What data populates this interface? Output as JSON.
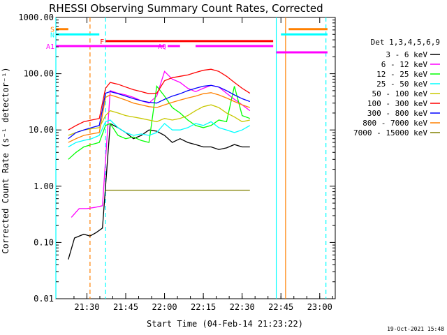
{
  "chart_data": {
    "type": "line",
    "title": "RHESSI Observing Summary Count Rates, Corrected",
    "xlabel": "Start Time (04-Feb-14 21:23:22)",
    "ylabel": "Corrected Count Rate (s⁻¹ detector⁻¹)",
    "yscale": "log",
    "xlim_minutes": [
      21.3,
      23.1
    ],
    "ylim": [
      0.01,
      1000
    ],
    "x_ticks": [
      "21:30",
      "21:45",
      "22:00",
      "22:15",
      "22:30",
      "22:45",
      "23:00"
    ],
    "y_ticks": [
      "0.01",
      "0.10",
      "1.00",
      "10.00",
      "100.00",
      "1000.00"
    ],
    "legend_title": "Det 1,3,4,5,6,9",
    "legend_position": "right",
    "x_units": "hours of day",
    "series": [
      {
        "name": "3 - 6 keV",
        "color": "#000000",
        "x": [
          21.38,
          21.42,
          21.48,
          21.52,
          21.56,
          21.6,
          21.65,
          21.7,
          21.75,
          21.8,
          21.85,
          21.9,
          21.95,
          22.0,
          22.05,
          22.1,
          22.15,
          22.2,
          22.25,
          22.3,
          22.35,
          22.4,
          22.45,
          22.5,
          22.55
        ],
        "y": [
          0.05,
          0.12,
          0.14,
          0.13,
          0.15,
          0.18,
          13,
          11,
          9,
          7,
          8,
          10,
          9.5,
          8,
          6,
          7,
          6,
          5.5,
          5,
          5,
          4.5,
          4.8,
          5.5,
          5,
          5
        ]
      },
      {
        "name": "6 - 12 keV",
        "color": "#ff00ff",
        "x": [
          21.4,
          21.45,
          21.5,
          21.55,
          21.6,
          21.65,
          21.7,
          21.75,
          21.8,
          21.85,
          21.9,
          21.95,
          22.0,
          22.05,
          22.1,
          22.15,
          22.2,
          22.25,
          22.3,
          22.35,
          22.4,
          22.45,
          22.5,
          22.55
        ],
        "y": [
          0.28,
          0.4,
          0.4,
          0.42,
          0.45,
          50,
          45,
          42,
          38,
          33,
          30,
          40,
          110,
          80,
          70,
          55,
          48,
          55,
          62,
          58,
          45,
          35,
          28,
          22
        ]
      },
      {
        "name": "12 - 25 keV",
        "color": "#00ff00",
        "x": [
          21.38,
          21.43,
          21.48,
          21.53,
          21.58,
          21.62,
          21.65,
          21.7,
          21.75,
          21.8,
          21.85,
          21.9,
          21.95,
          22.0,
          22.05,
          22.1,
          22.15,
          22.2,
          22.25,
          22.3,
          22.35,
          22.4,
          22.45,
          22.5,
          22.55
        ],
        "y": [
          3,
          4,
          5,
          5.5,
          6,
          12,
          13,
          8,
          7,
          7.5,
          6.5,
          6,
          60,
          40,
          25,
          20,
          15,
          12,
          11,
          12,
          15,
          14,
          60,
          18,
          16
        ]
      },
      {
        "name": "25 - 50 keV",
        "color": "#00ffff",
        "x": [
          21.38,
          21.43,
          21.48,
          21.53,
          21.58,
          21.62,
          21.65,
          21.7,
          21.75,
          21.8,
          21.85,
          21.9,
          21.95,
          22.0,
          22.05,
          22.1,
          22.15,
          22.2,
          22.25,
          22.3,
          22.35,
          22.4,
          22.45,
          22.5,
          22.55
        ],
        "y": [
          5,
          6,
          6.5,
          7,
          8,
          14,
          15,
          11,
          9,
          8,
          8.5,
          8,
          9,
          13,
          10,
          10,
          11,
          13,
          12,
          14,
          11,
          10,
          9,
          10,
          12
        ]
      },
      {
        "name": "50 - 100 keV",
        "color": "#c8c800",
        "x": [
          21.38,
          21.43,
          21.48,
          21.53,
          21.58,
          21.62,
          21.65,
          21.7,
          21.75,
          21.8,
          21.85,
          21.9,
          21.95,
          22.0,
          22.05,
          22.1,
          22.15,
          22.2,
          22.25,
          22.3,
          22.35,
          22.4,
          22.45,
          22.5,
          22.55
        ],
        "y": [
          8,
          9,
          10,
          10.5,
          11,
          18,
          22,
          20,
          18,
          17,
          16,
          15,
          14,
          16,
          15,
          16,
          18,
          22,
          26,
          28,
          25,
          20,
          17,
          14,
          15
        ]
      },
      {
        "name": "100 - 300 keV",
        "color": "#ff0000",
        "x": [
          21.38,
          21.43,
          21.48,
          21.53,
          21.58,
          21.62,
          21.65,
          21.7,
          21.75,
          21.8,
          21.85,
          21.9,
          21.95,
          22.0,
          22.05,
          22.1,
          22.15,
          22.2,
          22.25,
          22.3,
          22.35,
          22.4,
          22.45,
          22.5,
          22.55
        ],
        "y": [
          10,
          12,
          14,
          15,
          16,
          55,
          70,
          65,
          58,
          52,
          48,
          44,
          45,
          75,
          85,
          90,
          95,
          105,
          115,
          120,
          110,
          90,
          70,
          55,
          45
        ]
      },
      {
        "name": "300 - 800 keV",
        "color": "#0000ff",
        "x": [
          21.38,
          21.43,
          21.48,
          21.53,
          21.58,
          21.62,
          21.65,
          21.7,
          21.75,
          21.8,
          21.85,
          21.9,
          21.95,
          22.0,
          22.05,
          22.1,
          22.15,
          22.2,
          22.25,
          22.3,
          22.35,
          22.4,
          22.45,
          22.5,
          22.55
        ],
        "y": [
          7,
          9,
          10,
          11,
          12,
          45,
          48,
          44,
          40,
          36,
          33,
          31,
          30,
          35,
          40,
          44,
          50,
          55,
          60,
          62,
          58,
          50,
          42,
          36,
          32
        ]
      },
      {
        "name": "800 - 7000 keV",
        "color": "#ff8000",
        "x": [
          21.38,
          21.43,
          21.48,
          21.53,
          21.58,
          21.62,
          21.65,
          21.7,
          21.75,
          21.8,
          21.85,
          21.9,
          21.95,
          22.0,
          22.05,
          22.1,
          22.15,
          22.2,
          22.25,
          22.3,
          22.35,
          22.4,
          22.45,
          22.5,
          22.55
        ],
        "y": [
          6,
          7,
          8,
          8.5,
          9,
          38,
          42,
          38,
          34,
          30,
          28,
          26,
          25,
          28,
          31,
          34,
          37,
          40,
          44,
          46,
          42,
          37,
          32,
          28,
          25
        ]
      },
      {
        "name": "7000 - 15000 keV",
        "color": "#808000",
        "x": [
          21.62,
          21.7,
          21.8,
          21.9,
          22.0,
          22.1,
          22.2,
          22.3,
          22.4,
          22.5,
          22.55
        ],
        "y": [
          0.85,
          0.85,
          0.85,
          0.85,
          0.85,
          0.85,
          0.85,
          0.85,
          0.85,
          0.85,
          0.85
        ]
      }
    ],
    "segments": [
      {
        "label": "S",
        "color": "#ff8000",
        "from": 21.3,
        "to": 21.38,
        "level": 620
      },
      {
        "label": "N",
        "color": "#00ffff",
        "from": 21.3,
        "to": 21.58,
        "level": 500
      },
      {
        "label": "F",
        "color": "#ff0000",
        "from": 21.62,
        "to": 22.7,
        "level": 380
      },
      {
        "label": "AQ",
        "color": "#ff00ff",
        "from": 22.02,
        "to": 22.1,
        "level": 310
      },
      {
        "label": "A1",
        "color": "#ff00ff",
        "from": 21.3,
        "to": 22.0,
        "level": 310
      },
      {
        "label": "",
        "color": "#ff00ff",
        "from": 22.2,
        "to": 22.7,
        "level": 310
      },
      {
        "label": "",
        "color": "#ff00ff",
        "from": 22.72,
        "to": 23.05,
        "level": 240
      },
      {
        "label": "",
        "color": "#00ffff",
        "from": 22.75,
        "to": 23.05,
        "level": 500
      },
      {
        "label": "",
        "color": "#ff8000",
        "from": 22.8,
        "to": 23.05,
        "level": 620
      }
    ],
    "vlines": [
      {
        "x": 21.3,
        "color": "#00ffff",
        "style": "solid"
      },
      {
        "x": 21.52,
        "color": "#ff8000",
        "style": "dashed"
      },
      {
        "x": 21.62,
        "color": "#00ffff",
        "style": "dashed"
      },
      {
        "x": 22.72,
        "color": "#00ffff",
        "style": "solid"
      },
      {
        "x": 22.78,
        "color": "#ff8000",
        "style": "solid"
      },
      {
        "x": 23.04,
        "color": "#00ffff",
        "style": "dashed"
      }
    ]
  },
  "footer": {
    "timestamp": "19-Oct-2021 15:48"
  }
}
